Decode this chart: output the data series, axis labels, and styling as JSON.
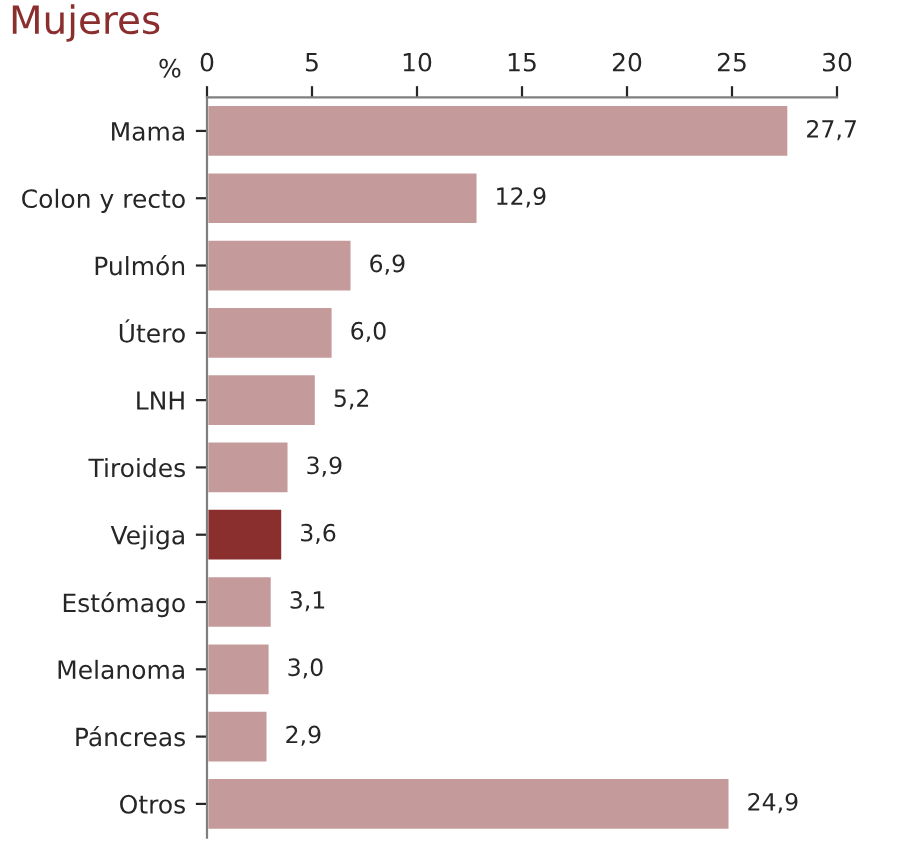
{
  "chart_data": {
    "type": "bar",
    "orientation": "horizontal",
    "title": "Mujeres",
    "xlabel": "%",
    "categories": [
      "Mama",
      "Colon y recto",
      "Pulmón",
      "Útero",
      "LNH",
      "Tiroides",
      "Vejiga",
      "Estómago",
      "Melanoma",
      "Páncreas",
      "Otros"
    ],
    "values": [
      27.7,
      12.9,
      6.9,
      6.0,
      5.2,
      3.9,
      3.6,
      3.1,
      3.0,
      2.9,
      24.9
    ],
    "colors": [
      "#c49a9a",
      "#c49a9a",
      "#c49a9a",
      "#c49a9a",
      "#c49a9a",
      "#c49a9a",
      "#8b2e2e",
      "#c49a9a",
      "#c49a9a",
      "#c49a9a",
      "#c49a9a"
    ],
    "value_labels": [
      "27,7",
      "12,9",
      "6,9",
      "6,0",
      "5,2",
      "3,9",
      "3,6",
      "3,1",
      "3,0",
      "2,9",
      "24,9"
    ],
    "xlim": [
      0,
      30
    ],
    "xticks": [
      0,
      5,
      10,
      15,
      20,
      25,
      30
    ],
    "grid": false,
    "legend": false
  }
}
